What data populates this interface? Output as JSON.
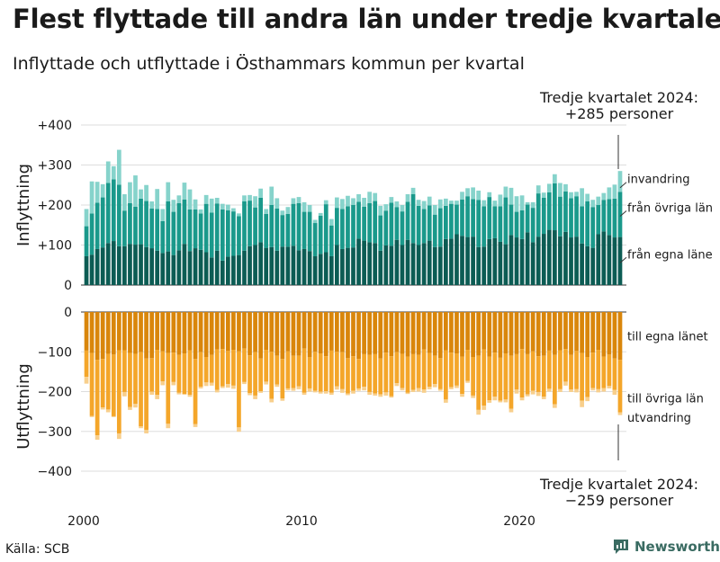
{
  "title": "Flest flyttade till andra län under tredje kvartalet",
  "subtitle": "Inflyttade och utflyttade i Östhammars kommun per kvartal",
  "source": "Källa: SCB",
  "brand": "Newsworthy",
  "note_top": {
    "line1": "Tredje kvartalet 2024:",
    "line2": "+285 personer"
  },
  "note_bottom": {
    "line1": "Tredje kvartalet 2024:",
    "line2": "−259 personer"
  },
  "colors": {
    "in_own": "#0c5c54",
    "in_other": "#1a998b",
    "in_immig": "#86d3cb",
    "out_own": "#d9860b",
    "out_other": "#f4a62a",
    "out_emig": "#f8cf8c",
    "grid": "#dddddd",
    "axis": "#333333",
    "brand": "#3a6b62"
  },
  "chart_data": {
    "type": "bar",
    "stacked": true,
    "x_start": "2000 Q1",
    "x_end": "2024 Q3",
    "x_ticks": [
      "2000",
      "2010",
      "2020"
    ],
    "panels": [
      {
        "ylabel": "Inflyttning",
        "ylim": [
          0,
          400
        ],
        "y_ticks": [
          "0",
          "+100",
          "+200",
          "+300",
          "+400"
        ],
        "series": [
          {
            "name": "från egna läne",
            "values": [
              72,
              76,
              90,
              94,
              105,
              110,
              97,
              97,
              103,
              101,
              102,
              95,
              92,
              86,
              80,
              84,
              75,
              87,
              103,
              85,
              92,
              88,
              82,
              69,
              86,
              61,
              71,
              73,
              75,
              86,
              97,
              100,
              107,
              93,
              95,
              86,
              96,
              96,
              98,
              87,
              90,
              85,
              72,
              78,
              82,
              72,
              100,
              90,
              93,
              94,
              116,
              111,
              107,
              105,
              86,
              99,
              98,
              113,
              100,
              113,
              105,
              100,
              105,
              111,
              95,
              96,
              115,
              116,
              127,
              123,
              120,
              121,
              95,
              96,
              115,
              117,
              108,
              102,
              125,
              119,
              115,
              132,
              107,
              121,
              128,
              138,
              137,
              122,
              133,
              119,
              121,
              104,
              97,
              93,
              127,
              134,
              125,
              119,
              120
            ]
          },
          {
            "name": "från övriga län",
            "values": [
              75,
              103,
              116,
              125,
              150,
              154,
              154,
              89,
              102,
              95,
              114,
              115,
              99,
              104,
              80,
              125,
              108,
              118,
              111,
              104,
              97,
              91,
              121,
              112,
              118,
              128,
              116,
              111,
              97,
              123,
              114,
              94,
              111,
              85,
              105,
              105,
              79,
              82,
              105,
              118,
              93,
              98,
              83,
              95,
              120,
              77,
              93,
              100,
              104,
              106,
              92,
              85,
              98,
              105,
              88,
              87,
              108,
              82,
              84,
              95,
              122,
              98,
              85,
              88,
              81,
              96,
              83,
              87,
              74,
              91,
              102,
              94,
              118,
              101,
              105,
              80,
              89,
              117,
              76,
              64,
              72,
              69,
              86,
              108,
              90,
              94,
              117,
              99,
              101,
              98,
              101,
              93,
              112,
              102,
              73,
              79,
              90,
              97,
              113
            ]
          },
          {
            "name": "invandring",
            "values": [
              43,
              80,
              52,
              33,
              54,
              33,
              87,
              41,
              52,
              78,
              23,
              40,
              18,
              50,
              30,
              48,
              30,
              19,
              42,
              50,
              25,
              10,
              22,
              35,
              14,
              14,
              14,
              8,
              7,
              15,
              14,
              28,
              23,
              12,
              46,
              26,
              11,
              17,
              14,
              15,
              24,
              17,
              8,
              7,
              10,
              16,
              26,
              25,
              26,
              17,
              19,
              22,
              28,
              20,
              24,
              16,
              14,
              14,
              16,
              19,
              16,
              15,
              20,
              22,
              24,
              22,
              18,
              8,
              10,
              19,
              20,
              29,
              23,
              15,
              12,
              14,
              29,
              27,
              42,
              39,
              37,
              6,
              14,
              20,
              13,
              21,
              23,
              34,
              18,
              15,
              11,
              45,
              19,
              18,
              21,
              17,
              29,
              35,
              52
            ]
          }
        ]
      },
      {
        "ylabel": "Utflyttning",
        "ylim": [
          -400,
          0
        ],
        "y_ticks": [
          "0",
          "−100",
          "−200",
          "−300",
          "−400"
        ],
        "series": [
          {
            "name": "till egna länet",
            "values": [
              -97,
              -103,
              -120,
              -118,
              -105,
              -107,
              -96,
              -96,
              -103,
              -105,
              -101,
              -117,
              -116,
              -95,
              -99,
              -103,
              -102,
              -108,
              -104,
              -96,
              -118,
              -101,
              -113,
              -108,
              -94,
              -93,
              -98,
              -95,
              -99,
              -92,
              -109,
              -101,
              -117,
              -95,
              -100,
              -110,
              -118,
              -99,
              -110,
              -110,
              -92,
              -113,
              -100,
              -104,
              -111,
              -97,
              -100,
              -101,
              -116,
              -111,
              -118,
              -106,
              -108,
              -106,
              -117,
              -102,
              -111,
              -101,
              -105,
              -112,
              -106,
              -108,
              -94,
              -103,
              -110,
              -116,
              -96,
              -102,
              -104,
              -112,
              -95,
              -113,
              -110,
              -94,
              -112,
              -102,
              -115,
              -104,
              -110,
              -106,
              -93,
              -106,
              -99,
              -111,
              -110,
              -97,
              -108,
              -96,
              -93,
              -108,
              -98,
              -103,
              -113,
              -102,
              -95,
              -112,
              -107,
              -117,
              -120
            ]
          },
          {
            "name": "till övriga län",
            "values": [
              -66,
              -158,
              -190,
              -122,
              -140,
              -155,
              -209,
              -105,
              -136,
              -126,
              -186,
              -179,
              -84,
              -113,
              -75,
              -178,
              -74,
              -95,
              -102,
              -112,
              -164,
              -87,
              -64,
              -70,
              -102,
              -94,
              -83,
              -90,
              -191,
              -84,
              -95,
              -109,
              -82,
              -80,
              -118,
              -72,
              -99,
              -93,
              -81,
              -77,
              -111,
              -79,
              -98,
              -96,
              -88,
              -106,
              -87,
              -93,
              -89,
              -87,
              -74,
              -82,
              -93,
              -99,
              -90,
              -100,
              -101,
              -78,
              -86,
              -91,
              -90,
              -83,
              -101,
              -85,
              -71,
              -78,
              -124,
              -87,
              -81,
              -94,
              -78,
              -97,
              -136,
              -141,
              -110,
              -111,
              -108,
              -116,
              -133,
              -89,
              -122,
              -101,
              -99,
              -90,
              -103,
              -96,
              -124,
              -98,
              -82,
              -87,
              -96,
              -120,
              -101,
              -89,
              -99,
              -79,
              -79,
              -79,
              -132
            ]
          },
          {
            "name": "utvandring",
            "values": [
              -17,
              -3,
              -11,
              -5,
              -7,
              -2,
              -14,
              -11,
              -7,
              -9,
              -5,
              -9,
              -8,
              -11,
              -10,
              -11,
              -8,
              -4,
              -2,
              -5,
              -7,
              -4,
              -9,
              -7,
              -6,
              -4,
              -9,
              -8,
              -11,
              -5,
              -5,
              -9,
              -4,
              -7,
              -9,
              -6,
              -6,
              -5,
              -7,
              -7,
              -5,
              -8,
              -4,
              -5,
              -6,
              -5,
              -8,
              -9,
              -4,
              -7,
              -6,
              -9,
              -7,
              -5,
              -6,
              -8,
              -3,
              -7,
              -6,
              -3,
              -5,
              -9,
              -8,
              -6,
              -8,
              -4,
              -8,
              -5,
              -6,
              -7,
              -5,
              -6,
              -12,
              -11,
              -6,
              -9,
              -4,
              -7,
              -9,
              -10,
              -7,
              -5,
              -9,
              -10,
              -6,
              -7,
              -9,
              -7,
              -10,
              -6,
              -8,
              -16,
              -10,
              -6,
              -8,
              -9,
              -6,
              -12,
              -7
            ]
          }
        ]
      }
    ]
  }
}
